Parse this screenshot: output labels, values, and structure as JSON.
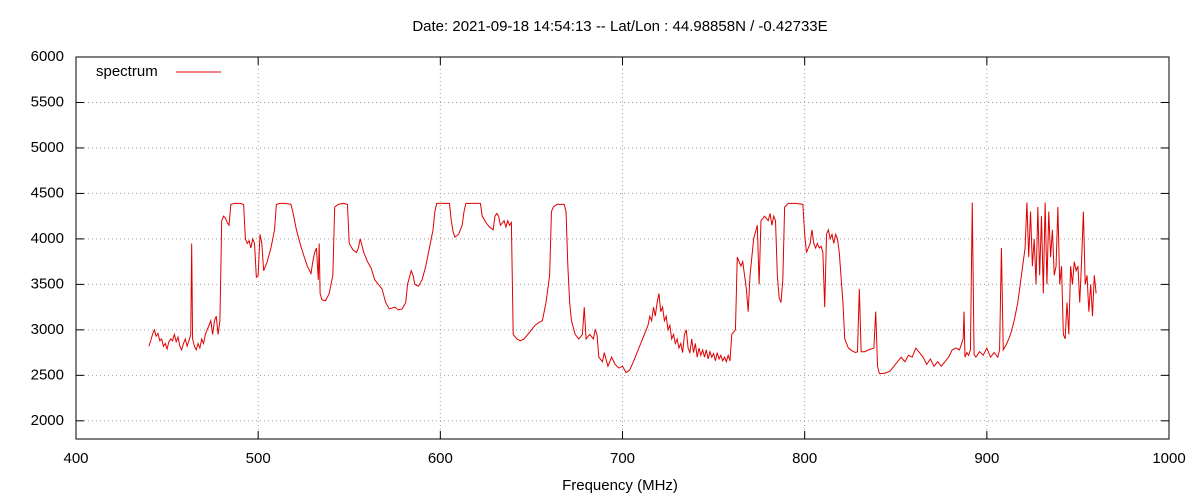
{
  "chart_data": {
    "type": "line",
    "title": "Date: 2021-09-18 14:54:13  --  Lat/Lon : 44.98858N / -0.42733E",
    "x_label": "Frequency (MHz)",
    "xlim": [
      400,
      1000
    ],
    "xticks": [
      400,
      500,
      600,
      700,
      800,
      900,
      1000
    ],
    "ylim": [
      1800,
      6000
    ],
    "yticks": [
      2000,
      2500,
      3000,
      3500,
      4000,
      4500,
      5000,
      5500,
      6000
    ],
    "grid": true,
    "legend": "top-left",
    "x": [
      440,
      441,
      442,
      443,
      444,
      445,
      446,
      447,
      448,
      449,
      450,
      451,
      452,
      453,
      454,
      455,
      456,
      457,
      458,
      459,
      460,
      461,
      462,
      463,
      463.5,
      464,
      465,
      466,
      467,
      468,
      469,
      470,
      471,
      472,
      473,
      474,
      475,
      476,
      477,
      478,
      479,
      480,
      481,
      482,
      483,
      484,
      485,
      487,
      490,
      492,
      493,
      494,
      495,
      496,
      497,
      498,
      499,
      500,
      501,
      502,
      503,
      505,
      507,
      509,
      510,
      512,
      515,
      518,
      519,
      521,
      523,
      525,
      527,
      529,
      530,
      531,
      532,
      533,
      533.5,
      534,
      535,
      537,
      539,
      541,
      542,
      544,
      547,
      549,
      550,
      552,
      554,
      555,
      556,
      558,
      560,
      562,
      564,
      566,
      568,
      570,
      572,
      575,
      577,
      579,
      581,
      582,
      584,
      585,
      586,
      588,
      590,
      592,
      594,
      596,
      597,
      598,
      605,
      606,
      607,
      608,
      610,
      612,
      613,
      614,
      622,
      623,
      625,
      627,
      629,
      630,
      631,
      632,
      633,
      635,
      636,
      637,
      638,
      639,
      640,
      642,
      644,
      646,
      648,
      650,
      652,
      654,
      656,
      658,
      660,
      661,
      662,
      664,
      668,
      669,
      670,
      671,
      672,
      674,
      676,
      678,
      679,
      680,
      682,
      684,
      685,
      686,
      687,
      689,
      690,
      692,
      694,
      696,
      698,
      700,
      702,
      704,
      706,
      708,
      710,
      712,
      714,
      715,
      716,
      717,
      718,
      719,
      720,
      721,
      722,
      723,
      724,
      725,
      726,
      727,
      728,
      729,
      730,
      731,
      732,
      733,
      734,
      735,
      736,
      737,
      738,
      739,
      740,
      741,
      742,
      743,
      744,
      745,
      746,
      747,
      748,
      749,
      750,
      751,
      752,
      753,
      754,
      755,
      756,
      757,
      758,
      759,
      760,
      762,
      763,
      764,
      765,
      766,
      767,
      768,
      769,
      770,
      772,
      774,
      775,
      776,
      778,
      780,
      781,
      782,
      783,
      784,
      785,
      786,
      787,
      788,
      789,
      791,
      795,
      799,
      800,
      801,
      802,
      803,
      804,
      805,
      806,
      807,
      808,
      809,
      810,
      811,
      812,
      813,
      814,
      815,
      816,
      817,
      818,
      819,
      821,
      822,
      824,
      826,
      828,
      829,
      830,
      831,
      833,
      835,
      838,
      839,
      840,
      841,
      843,
      845,
      847,
      849,
      851,
      853,
      855,
      857,
      859,
      861,
      863,
      865,
      867,
      869,
      871,
      873,
      875,
      877,
      879,
      881,
      883,
      885,
      887,
      887.5,
      888,
      889,
      890,
      891,
      892,
      893,
      894,
      896,
      898,
      900,
      902,
      904,
      906,
      907,
      908,
      909,
      911,
      913,
      915,
      917,
      919,
      921,
      922,
      923,
      924,
      925,
      926,
      927,
      928,
      929,
      930,
      931,
      932,
      933,
      934,
      935,
      936,
      937,
      938,
      939,
      940,
      941,
      942,
      943,
      944,
      945,
      946,
      947,
      948,
      949,
      950,
      951,
      952,
      953,
      954,
      955,
      956,
      957,
      958,
      959,
      960
    ],
    "series": [
      {
        "name": "spectrum",
        "color": "#e00000",
        "values": [
          2820,
          2880,
          2950,
          3000,
          2930,
          2960,
          2880,
          2900,
          2820,
          2850,
          2790,
          2870,
          2900,
          2880,
          2950,
          2870,
          2920,
          2820,
          2780,
          2850,
          2900,
          2820,
          2880,
          2950,
          3950,
          2900,
          2820,
          2780,
          2850,
          2800,
          2900,
          2850,
          2950,
          3000,
          3050,
          3100,
          2950,
          3100,
          3150,
          2950,
          3100,
          4200,
          4250,
          4230,
          4180,
          4150,
          4380,
          4390,
          4390,
          4380,
          4000,
          3950,
          3980,
          3900,
          4000,
          3950,
          3580,
          3600,
          4050,
          3950,
          3650,
          3750,
          3900,
          4100,
          4380,
          4390,
          4390,
          4380,
          4300,
          4100,
          3950,
          3820,
          3700,
          3620,
          3750,
          3850,
          3900,
          3550,
          3950,
          3400,
          3330,
          3320,
          3400,
          3600,
          4350,
          4380,
          4390,
          4380,
          3950,
          3880,
          3850,
          3900,
          4000,
          3850,
          3750,
          3680,
          3550,
          3500,
          3450,
          3300,
          3230,
          3250,
          3220,
          3230,
          3300,
          3500,
          3650,
          3600,
          3500,
          3480,
          3550,
          3700,
          3900,
          4100,
          4300,
          4390,
          4390,
          4200,
          4080,
          4020,
          4050,
          4150,
          4300,
          4390,
          4390,
          4250,
          4180,
          4130,
          4100,
          4250,
          4280,
          4250,
          4150,
          4200,
          4130,
          4200,
          4150,
          4180,
          2950,
          2900,
          2880,
          2900,
          2950,
          3000,
          3050,
          3080,
          3100,
          3300,
          3600,
          4300,
          4350,
          4380,
          4380,
          4300,
          3700,
          3300,
          3100,
          2950,
          2900,
          2950,
          3250,
          2900,
          2950,
          2900,
          3000,
          2950,
          2700,
          2650,
          2750,
          2600,
          2700,
          2620,
          2580,
          2600,
          2530,
          2560,
          2650,
          2750,
          2850,
          2950,
          3050,
          3150,
          3100,
          3250,
          3150,
          3300,
          3400,
          3200,
          3250,
          3100,
          3150,
          3000,
          3050,
          2900,
          2950,
          2850,
          2900,
          2800,
          2850,
          2750,
          2950,
          3000,
          2800,
          2750,
          2900,
          2750,
          2850,
          2700,
          2800,
          2720,
          2780,
          2700,
          2780,
          2680,
          2760,
          2700,
          2740,
          2660,
          2750,
          2680,
          2720,
          2660,
          2700,
          2650,
          2720,
          2660,
          2950,
          3000,
          3800,
          3750,
          3700,
          3750,
          3600,
          3450,
          3200,
          3600,
          4000,
          4150,
          3500,
          4200,
          4250,
          4200,
          4280,
          4150,
          4250,
          4200,
          3600,
          3350,
          3300,
          3550,
          4350,
          4390,
          4390,
          4380,
          4050,
          3850,
          3900,
          3950,
          4100,
          3950,
          3900,
          3950,
          3900,
          3920,
          3850,
          3250,
          4050,
          4100,
          4000,
          4050,
          3950,
          4050,
          4000,
          3850,
          3300,
          2900,
          2800,
          2770,
          2750,
          2760,
          3450,
          2760,
          2760,
          2780,
          2800,
          3200,
          2600,
          2520,
          2520,
          2530,
          2550,
          2600,
          2650,
          2700,
          2650,
          2720,
          2700,
          2800,
          2750,
          2700,
          2620,
          2680,
          2600,
          2650,
          2600,
          2650,
          2700,
          2780,
          2800,
          2780,
          2900,
          3200,
          2700,
          2750,
          2720,
          2780,
          4400,
          2730,
          2700,
          2760,
          2720,
          2800,
          2700,
          2750,
          2700,
          2780,
          3900,
          2780,
          2850,
          2950,
          3100,
          3300,
          3600,
          3900,
          4400,
          3800,
          4300,
          3700,
          4000,
          3500,
          4350,
          3600,
          4250,
          3400,
          4400,
          3500,
          4300,
          3800,
          4100,
          3600,
          3700,
          4350,
          3500,
          3700,
          2950,
          2900,
          3300,
          2950,
          3700,
          3500,
          3750,
          3650,
          3700,
          3300,
          3750,
          4300,
          3500,
          3600,
          3200,
          3500,
          3150,
          3600,
          3400
        ]
      }
    ]
  }
}
